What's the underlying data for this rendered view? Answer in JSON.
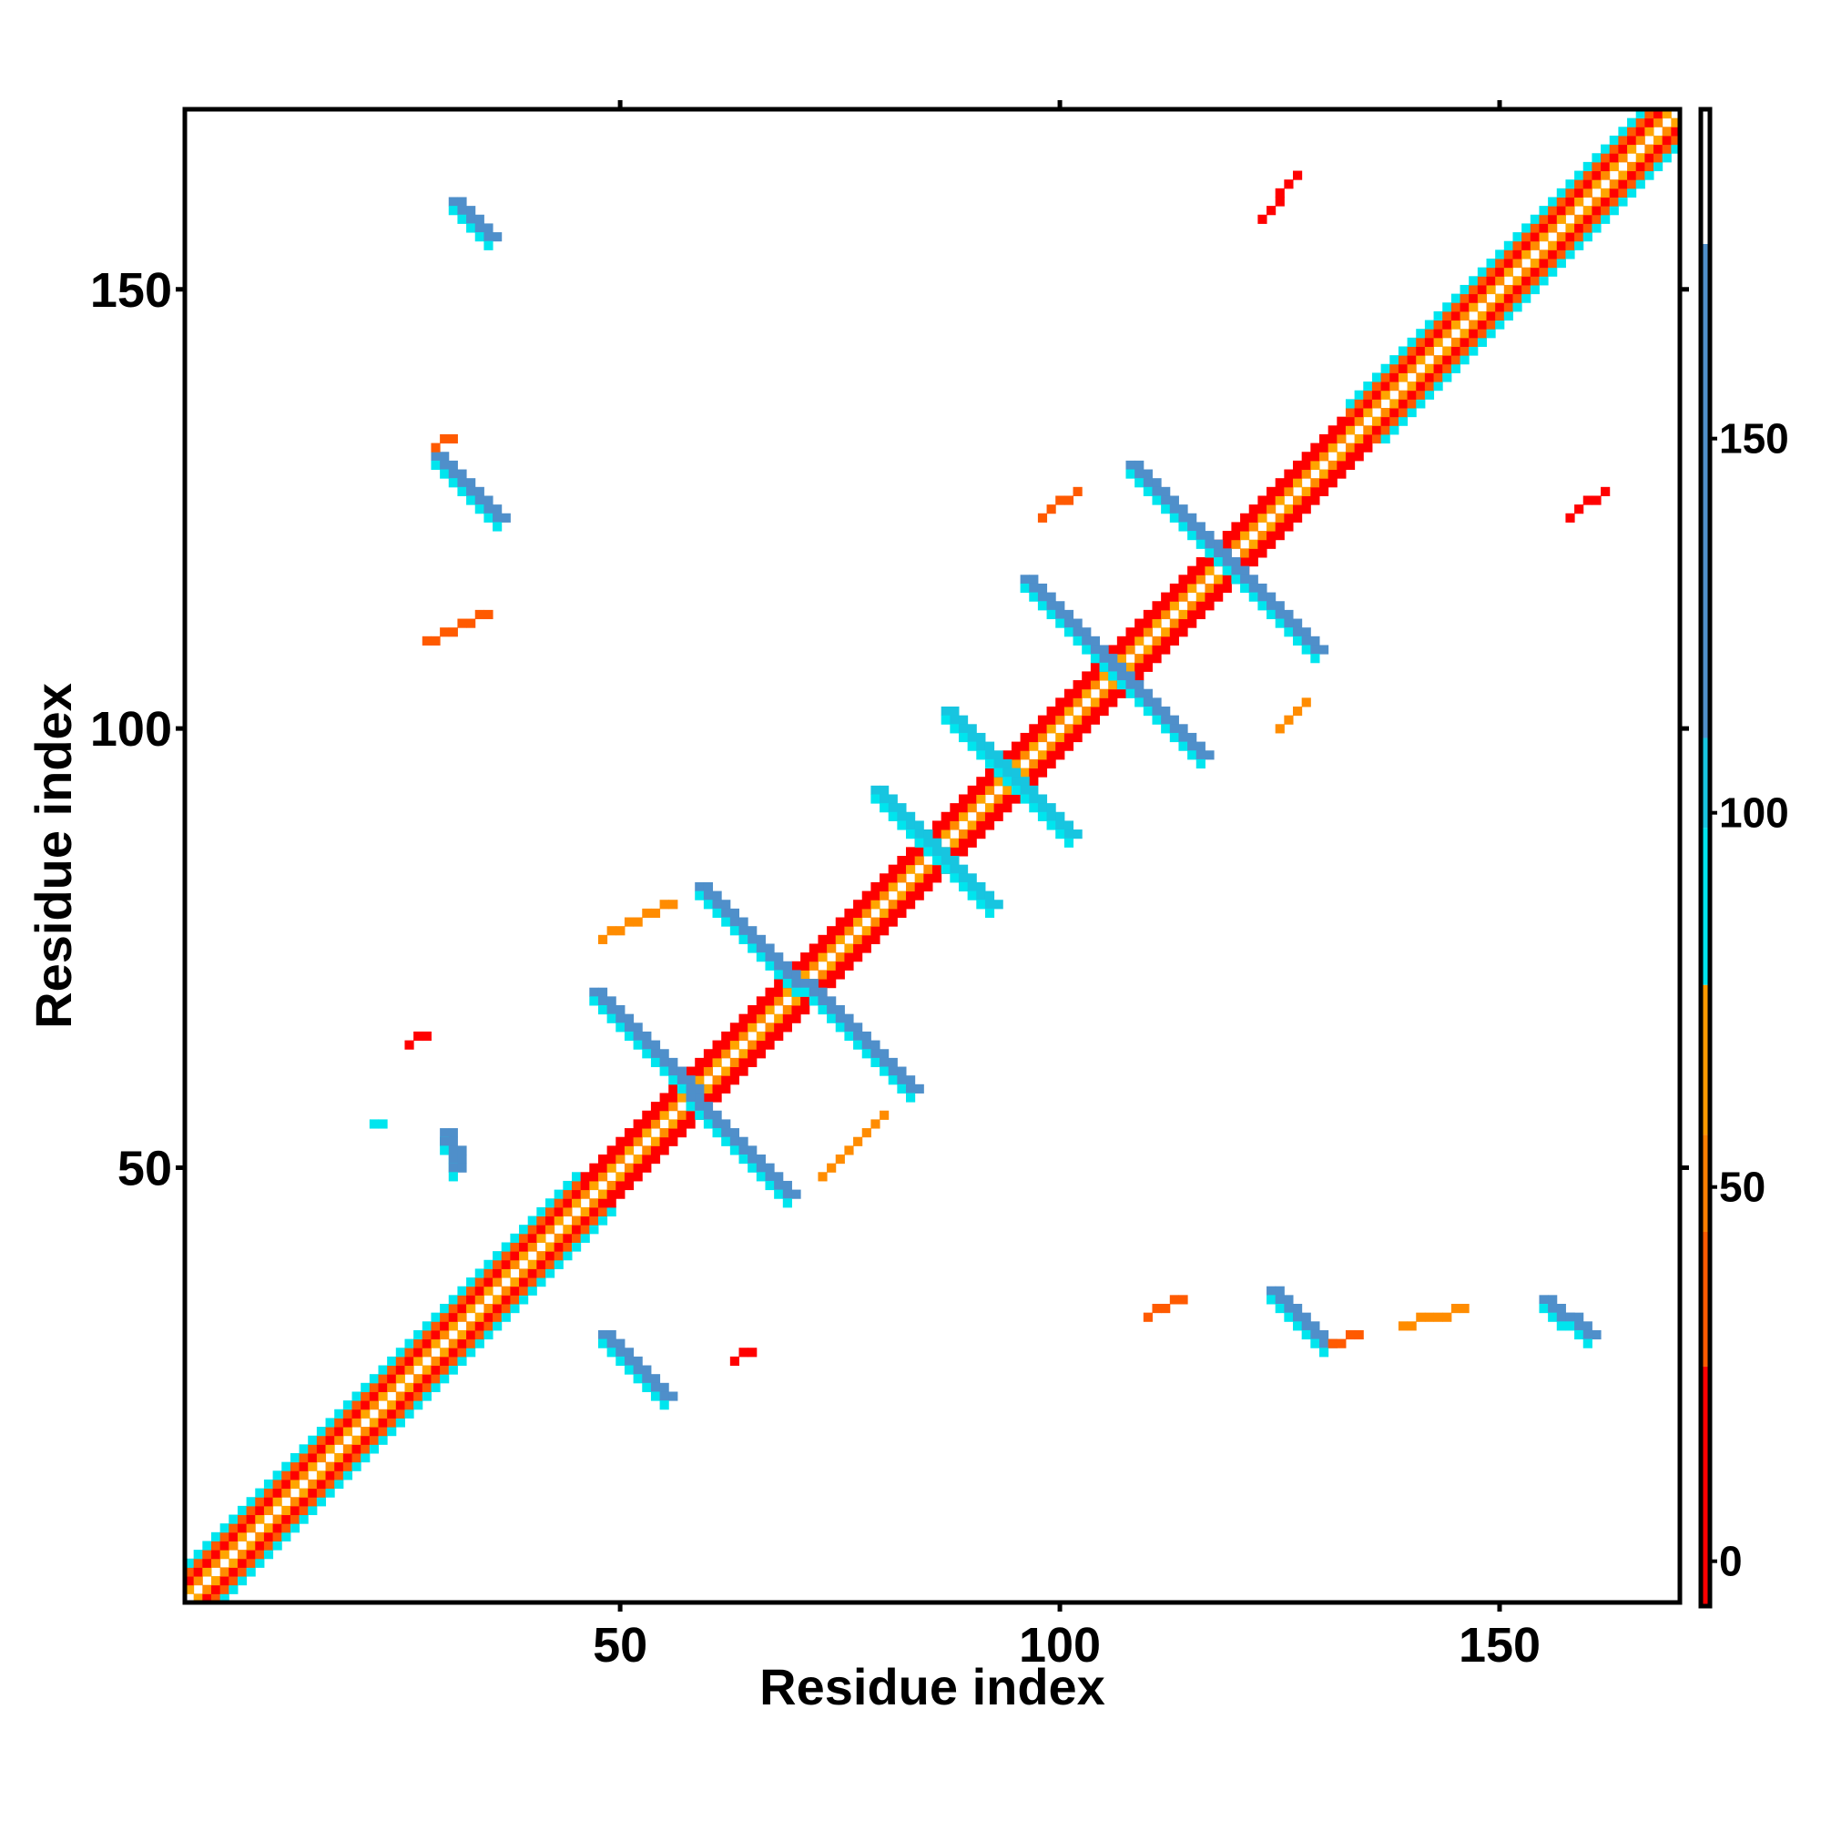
{
  "chart_data": {
    "type": "heatmap",
    "title": "",
    "xlabel": "Residue index",
    "ylabel": "Residue index",
    "xlim": [
      0.5,
      170.5
    ],
    "ylim": [
      0.5,
      170.5
    ],
    "x_ticks": [
      50,
      100,
      150
    ],
    "y_ticks": [
      50,
      100,
      150
    ],
    "grid": false,
    "colorbar": {
      "placement": "right",
      "ticks": [
        0,
        50,
        100,
        150
      ],
      "range": [
        -6,
        194
      ],
      "segments": [
        {
          "from": -6,
          "to": 26,
          "color": "#ff0000"
        },
        {
          "from": 26,
          "to": 44,
          "color": "#ff5a00"
        },
        {
          "from": 44,
          "to": 57,
          "color": "#ff7f00"
        },
        {
          "from": 57,
          "to": 77,
          "color": "#ff9a00"
        },
        {
          "from": 77,
          "to": 98,
          "color": "#00e5ee"
        },
        {
          "from": 98,
          "to": 110,
          "color": "#17c5e0"
        },
        {
          "from": 110,
          "to": 176,
          "color": "#4f8fca"
        },
        {
          "from": 176,
          "to": 194,
          "color": "#ffffff"
        }
      ]
    },
    "colors": {
      "red": "#ff0000",
      "dark_orange": "#ff5a00",
      "orange": "#ff8c00",
      "light_orange": "#ffa500",
      "cyan": "#00e5ee",
      "light_blue": "#17c5e0",
      "steel_blue": "#4f8fca"
    },
    "diagonal_band": {
      "description": "symmetric contact band along the diagonal",
      "start": 1,
      "end": 170
    },
    "contact_segments": [
      {
        "x1": 47,
        "y1": 70,
        "x2": 69,
        "y2": 47,
        "color": "steel_blue"
      },
      {
        "x1": 59,
        "y1": 82,
        "x2": 83,
        "y2": 59,
        "color": "steel_blue"
      },
      {
        "x1": 79,
        "y1": 93,
        "x2": 92,
        "y2": 80,
        "color": "light_blue"
      },
      {
        "x1": 87,
        "y1": 102,
        "x2": 101,
        "y2": 88,
        "color": "light_blue"
      },
      {
        "x1": 96,
        "y1": 117,
        "x2": 116,
        "y2": 97,
        "color": "steel_blue"
      },
      {
        "x1": 108,
        "y1": 130,
        "x2": 129,
        "y2": 109,
        "color": "steel_blue"
      },
      {
        "x1": 30,
        "y1": 54,
        "x2": 31,
        "y2": 50,
        "color": "steel_blue"
      },
      {
        "x1": 22,
        "y1": 55,
        "x2": 23,
        "y2": 55,
        "color": "cyan"
      },
      {
        "x1": 29,
        "y1": 131,
        "x2": 36,
        "y2": 124,
        "color": "steel_blue"
      },
      {
        "x1": 31,
        "y1": 160,
        "x2": 35,
        "y2": 156,
        "color": "steel_blue"
      },
      {
        "x1": 48,
        "y1": 31,
        "x2": 55,
        "y2": 24,
        "color": "steel_blue"
      },
      {
        "x1": 124,
        "y1": 36,
        "x2": 130,
        "y2": 30,
        "color": "steel_blue"
      },
      {
        "x1": 155,
        "y1": 35,
        "x2": 160,
        "y2": 31,
        "color": "steel_blue"
      },
      {
        "x1": 29,
        "y1": 132,
        "x2": 31,
        "y2": 133,
        "color": "dark_orange"
      },
      {
        "x1": 28,
        "y1": 110,
        "x2": 35,
        "y2": 113,
        "color": "dark_orange"
      },
      {
        "x1": 48,
        "y1": 76,
        "x2": 56,
        "y2": 80,
        "color": "orange"
      },
      {
        "x1": 73,
        "y1": 49,
        "x2": 80,
        "y2": 56,
        "color": "orange"
      },
      {
        "x1": 110,
        "y1": 33,
        "x2": 114,
        "y2": 35,
        "color": "dark_orange"
      },
      {
        "x1": 131,
        "y1": 30,
        "x2": 134,
        "y2": 31,
        "color": "dark_orange"
      },
      {
        "x1": 139,
        "y1": 32,
        "x2": 146,
        "y2": 34,
        "color": "orange"
      },
      {
        "x1": 98,
        "y1": 124,
        "x2": 102,
        "y2": 127,
        "color": "dark_orange"
      },
      {
        "x1": 125,
        "y1": 100,
        "x2": 128,
        "y2": 103,
        "color": "orange"
      },
      {
        "x1": 123,
        "y1": 158,
        "x2": 127,
        "y2": 163,
        "color": "red"
      },
      {
        "x1": 158,
        "y1": 124,
        "x2": 162,
        "y2": 127,
        "color": "red"
      },
      {
        "x1": 26,
        "y1": 64,
        "x2": 28,
        "y2": 65,
        "color": "red"
      },
      {
        "x1": 63,
        "y1": 28,
        "x2": 65,
        "y2": 29,
        "color": "red"
      }
    ]
  }
}
